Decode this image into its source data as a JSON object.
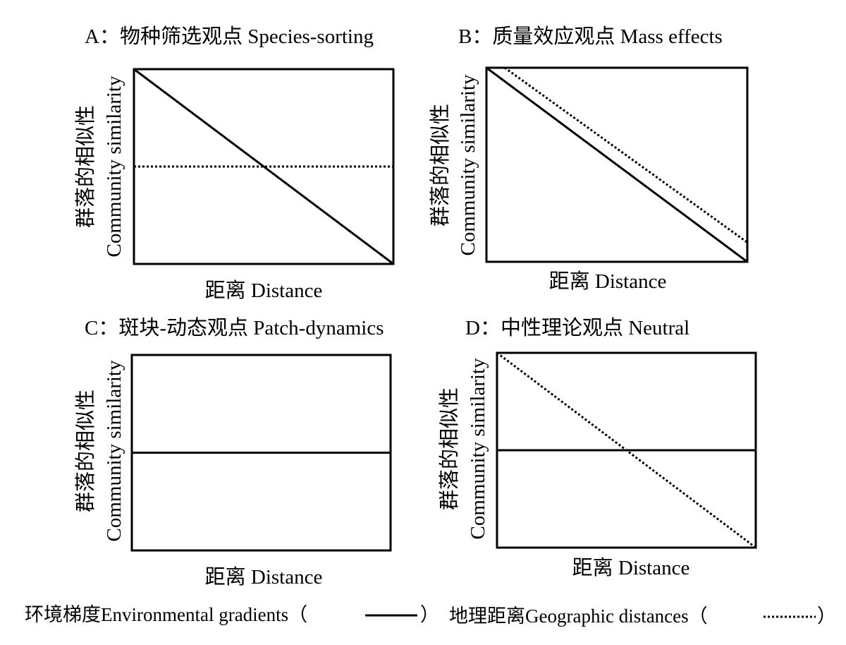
{
  "chart_data": [
    {
      "type": "line",
      "title": "A：物种筛选观点 Species-sorting",
      "ylabel_cn": "群落的相似性",
      "ylabel_en": "Community similarity",
      "xlabel": "距离 Distance",
      "xlim": [
        0,
        1
      ],
      "ylim": [
        0,
        1
      ],
      "series": [
        {
          "key": "environmental",
          "x": [
            0,
            1
          ],
          "y": [
            1.0,
            0.0
          ]
        },
        {
          "key": "geographic",
          "x": [
            0,
            1
          ],
          "y": [
            0.5,
            0.5
          ]
        }
      ]
    },
    {
      "type": "line",
      "title": "B：质量效应观点 Mass effects",
      "ylabel_cn": "群落的相似性",
      "ylabel_en": "Community similarity",
      "xlabel": "距离 Distance",
      "xlim": [
        0,
        1
      ],
      "ylim": [
        0,
        1
      ],
      "series": [
        {
          "key": "environmental",
          "x": [
            0,
            1
          ],
          "y": [
            1.0,
            0.0
          ]
        },
        {
          "key": "geographic",
          "x": [
            0.07,
            1
          ],
          "y": [
            1.0,
            0.1
          ]
        }
      ]
    },
    {
      "type": "line",
      "title": "C：斑块-动态观点 Patch-dynamics",
      "ylabel_cn": "群落的相似性",
      "ylabel_en": "Community similarity",
      "xlabel": "距离 Distance",
      "xlim": [
        0,
        1
      ],
      "ylim": [
        0,
        1
      ],
      "series": [
        {
          "key": "environmental",
          "x": [
            0,
            1
          ],
          "y": [
            0.5,
            0.5
          ]
        }
      ]
    },
    {
      "type": "line",
      "title": "D：中性理论观点 Neutral",
      "ylabel_cn": "群落的相似性",
      "ylabel_en": "Community similarity",
      "xlabel": "距离 Distance",
      "xlim": [
        0,
        1
      ],
      "ylim": [
        0,
        1
      ],
      "series": [
        {
          "key": "environmental",
          "x": [
            0,
            1
          ],
          "y": [
            0.5,
            0.5
          ]
        },
        {
          "key": "geographic",
          "x": [
            0,
            1
          ],
          "y": [
            1.0,
            0.0
          ]
        }
      ]
    }
  ],
  "legend": {
    "environmental_label": "环境梯度Environmental gradients（",
    "environmental_close": "）",
    "geographic_label": "地理距离Geographic distances（",
    "geographic_close": "）"
  }
}
